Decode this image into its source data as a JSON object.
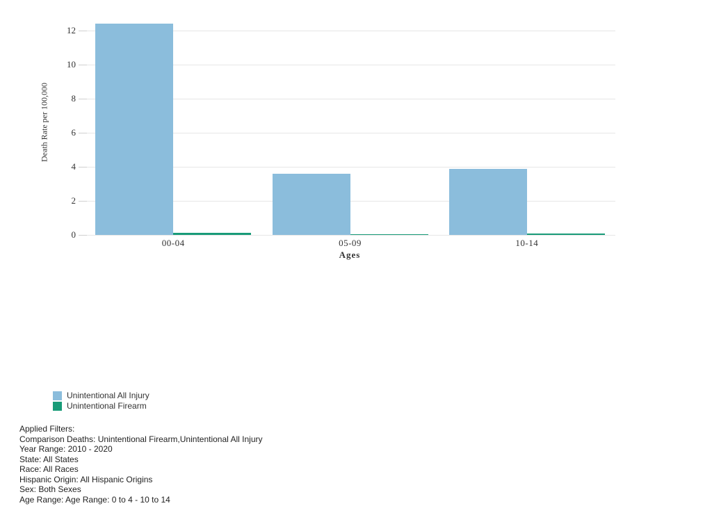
{
  "chart_data": {
    "type": "bar",
    "title": "",
    "categories": [
      "00-04",
      "05-09",
      "10-14"
    ],
    "series": [
      {
        "name": "Unintentional All Injury",
        "color": "#8BBDDC",
        "values": [
          12.4,
          3.6,
          3.9
        ]
      },
      {
        "name": "Unintentional Firearm",
        "color": "#189B78",
        "values": [
          0.14,
          0.06,
          0.09
        ]
      }
    ],
    "xlabel": "Ages",
    "ylabel": "Death Rate per 100,000",
    "ylim": [
      0,
      12.7
    ],
    "yticks": [
      0,
      2,
      4,
      6,
      8,
      10,
      12
    ],
    "grid": true,
    "legend_position": "bottom-left"
  },
  "filters": {
    "title": "Applied Filters:",
    "lines": [
      "Comparison Deaths: Unintentional Firearm,Unintentional All Injury",
      "Year Range: 2010 - 2020",
      "State: All States",
      "Race: All Races",
      "Hispanic Origin: All Hispanic Origins",
      "Sex: Both Sexes",
      "Age Range: Age Range: 0 to 4 - 10 to 14"
    ]
  },
  "colors": {
    "bar_blue": "#8BBDDC",
    "bar_teal": "#189B78",
    "gridline": "#e6e6e6",
    "tick_mark": "#d0d0d0",
    "axis_text": "#333333",
    "filter_text": "#1f1f1f"
  }
}
